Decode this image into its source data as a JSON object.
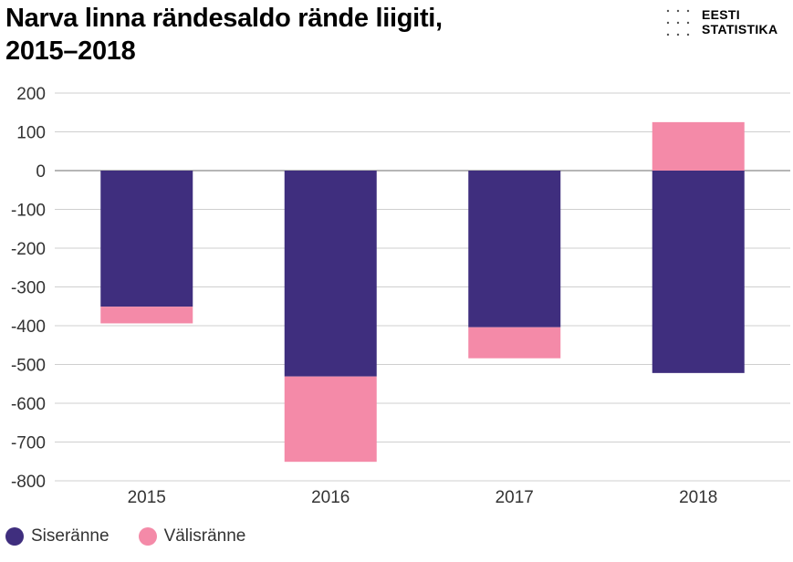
{
  "header": {
    "title_line1": "Narva linna rändesaldo rände liigiti,",
    "title_line2": "2015–2018",
    "logo_line1": "EESTI",
    "logo_line2": "STATISTIKA"
  },
  "chart_data": {
    "type": "bar",
    "stacked": true,
    "title": "Narva linna rändesaldo rände liigiti, 2015–2018",
    "categories": [
      "2015",
      "2016",
      "2017",
      "2018"
    ],
    "series": [
      {
        "name": "Siseränne",
        "color": "#3f2e7e",
        "values": [
          -351,
          -531,
          -404,
          -522
        ]
      },
      {
        "name": "Välisränne",
        "color": "#f48aa8",
        "values": [
          -43,
          -220,
          -80,
          125
        ]
      }
    ],
    "ylim": [
      -800,
      200
    ],
    "yticks": [
      "200",
      "100",
      "0",
      "-100",
      "-200",
      "-300",
      "-400",
      "-500",
      "-600",
      "-700",
      "-800"
    ],
    "grid": true,
    "legend_position": "bottom-left"
  }
}
